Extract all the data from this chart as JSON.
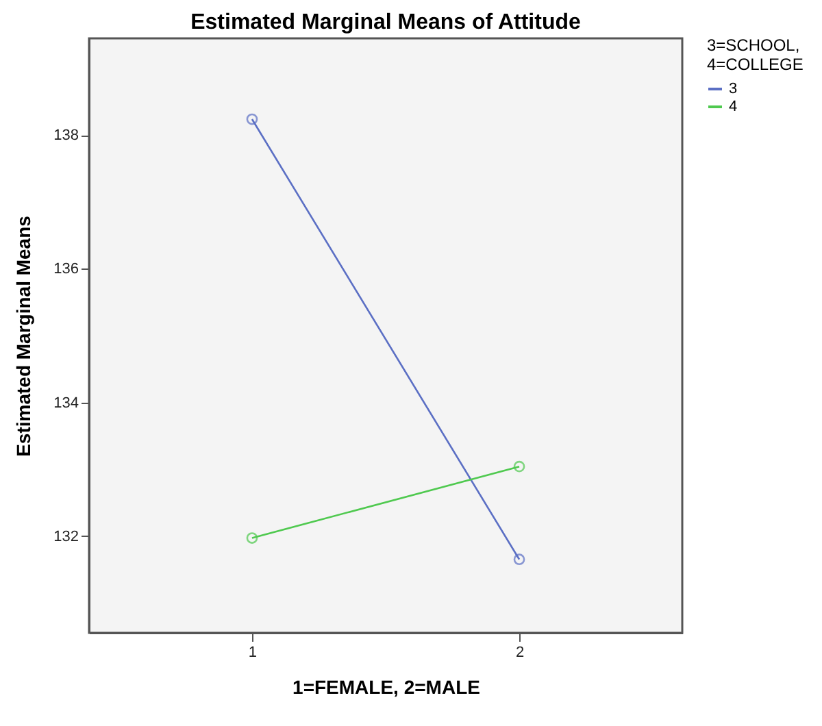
{
  "chart_data": {
    "type": "line",
    "title": "Estimated Marginal Means of Attitude",
    "xlabel": "1=FEMALE, 2=MALE",
    "ylabel": "Estimated Marginal Means",
    "legend_title": "3=SCHOOL, 4=COLLEGE",
    "categories": [
      "1",
      "2"
    ],
    "series": [
      {
        "name": "3",
        "color": "#5b6fc4",
        "values": [
          138.24,
          131.65
        ]
      },
      {
        "name": "4",
        "color": "#4fc94f",
        "values": [
          131.97,
          133.04
        ]
      }
    ],
    "ylim": [
      130.55,
      139.45
    ],
    "yticks": [
      132,
      134,
      136,
      138
    ],
    "legend": "top right",
    "marker": "circle",
    "line_style": "solid"
  }
}
